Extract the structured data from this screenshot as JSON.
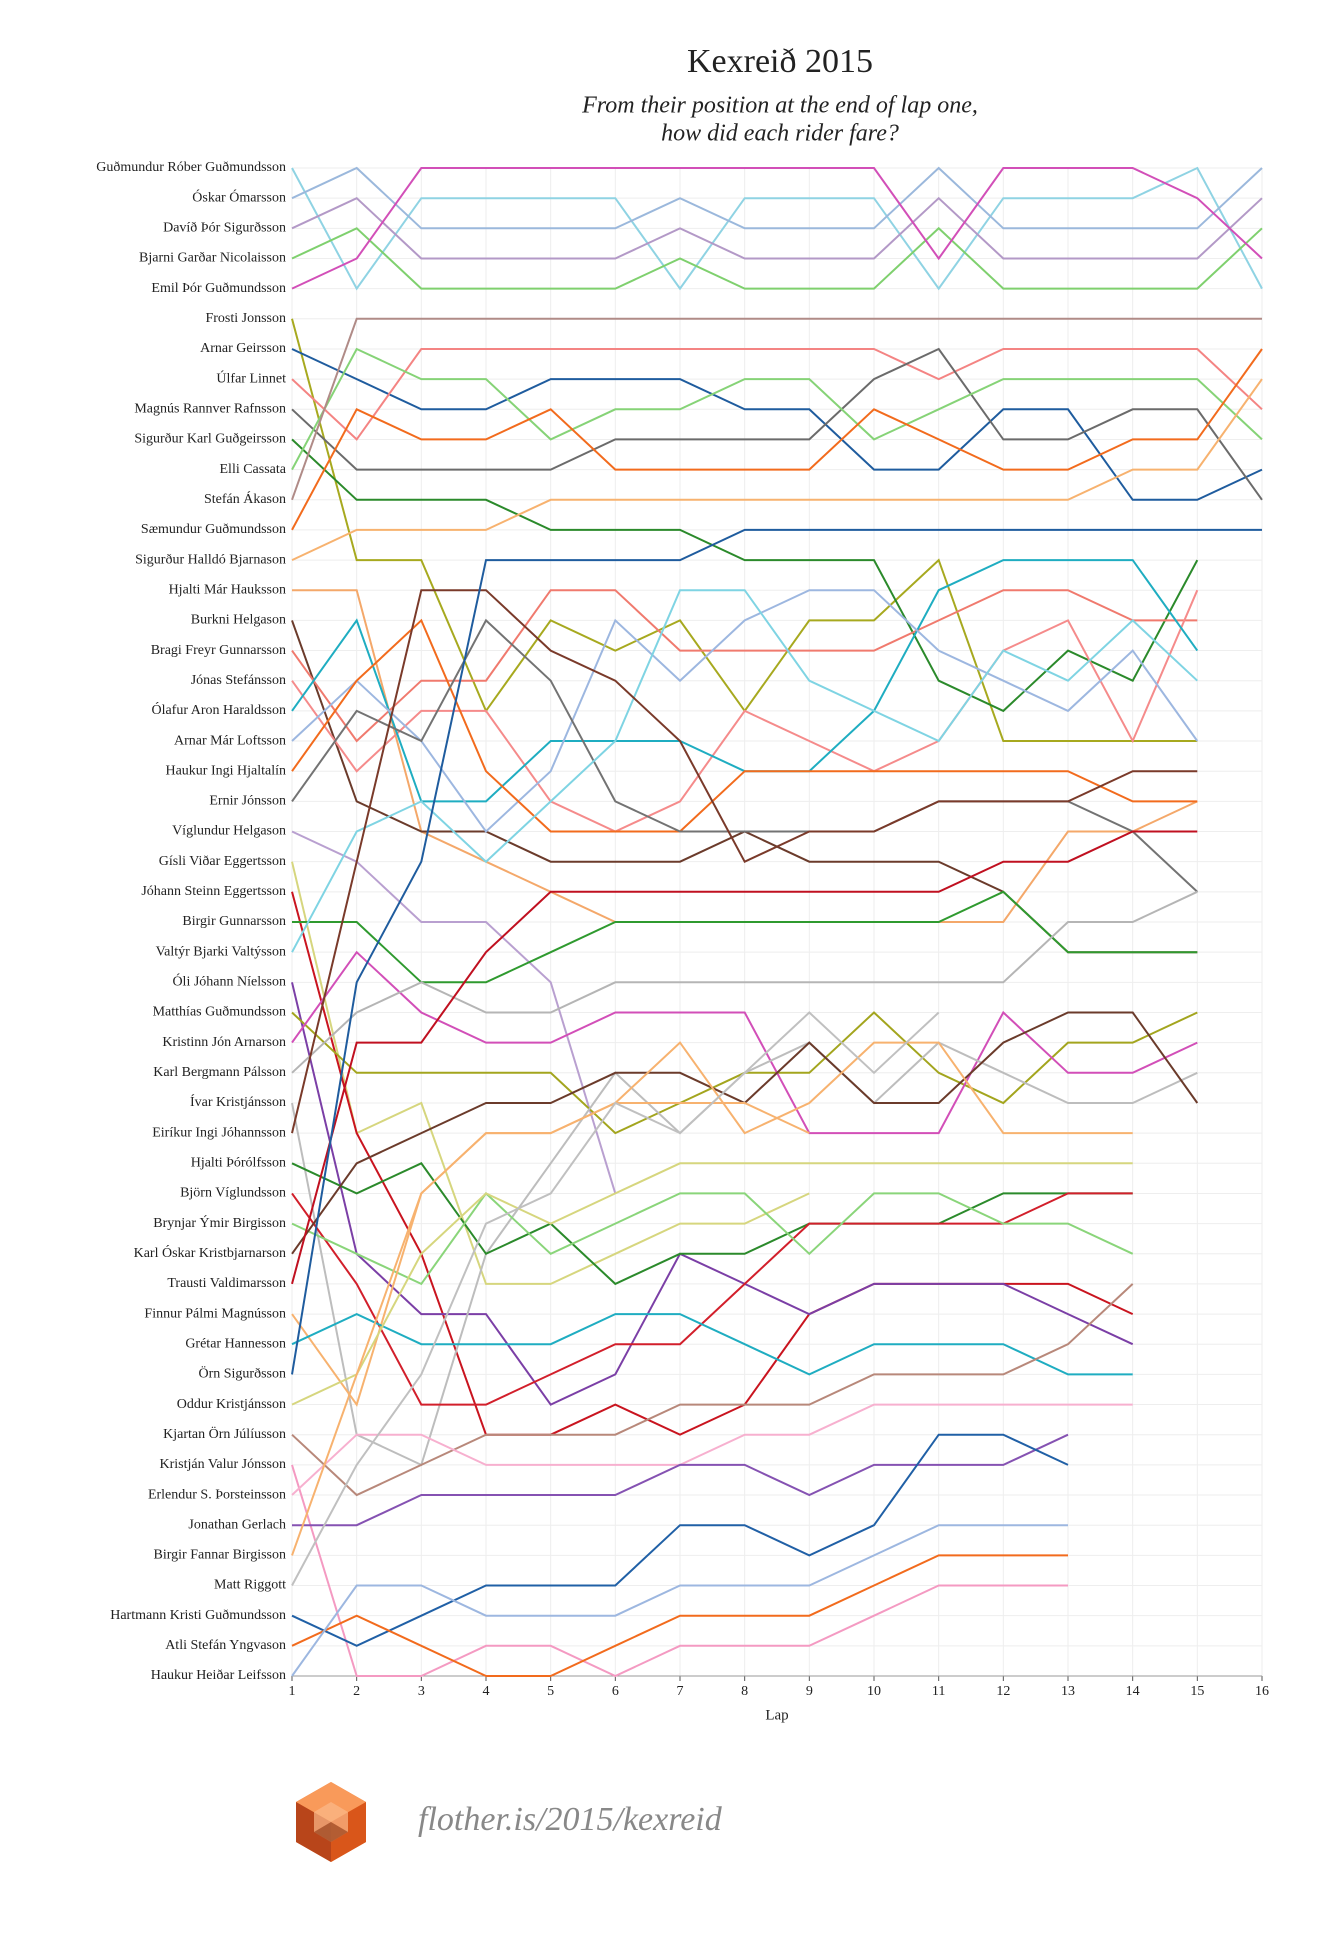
{
  "chart_data": {
    "type": "line",
    "title": "Kexreið 2015",
    "subtitle": [
      "From their position at the end of lap one,",
      "how did each rider fare?"
    ],
    "x_label": "Lap",
    "x": [
      1,
      2,
      3,
      4,
      5,
      6,
      7,
      8,
      9,
      10,
      11,
      12,
      13,
      14,
      15,
      16
    ],
    "xlim": [
      1,
      16
    ],
    "xticks": [
      1,
      2,
      3,
      4,
      5,
      6,
      7,
      8,
      9,
      10,
      11,
      12,
      13,
      14,
      15,
      16
    ],
    "ylim": [
      51,
      1
    ],
    "grid": true,
    "series": [
      {
        "name": "Guðmundur Róber Guðmundsson",
        "color": "#8fd3e3",
        "values": [
          1,
          5,
          2,
          2,
          2,
          2,
          5,
          2,
          2,
          2,
          5,
          2,
          2,
          2,
          1,
          5
        ]
      },
      {
        "name": "Óskar Ómarsson",
        "color": "#9bb8dc",
        "values": [
          2,
          1,
          3,
          3,
          3,
          3,
          2,
          3,
          3,
          3,
          1,
          3,
          3,
          3,
          3,
          1
        ]
      },
      {
        "name": "Davíð Þór Sigurðsson",
        "color": "#b399c7",
        "values": [
          3,
          2,
          4,
          4,
          4,
          4,
          3,
          4,
          4,
          4,
          2,
          4,
          4,
          4,
          4,
          2
        ]
      },
      {
        "name": "Bjarni Garðar Nicolaisson",
        "color": "#7fd06e",
        "values": [
          4,
          3,
          5,
          5,
          5,
          5,
          4,
          5,
          5,
          5,
          3,
          5,
          5,
          5,
          5,
          3
        ]
      },
      {
        "name": "Emil Þór Guðmundsson",
        "color": "#d24fb8",
        "values": [
          5,
          4,
          1,
          1,
          1,
          1,
          1,
          1,
          1,
          1,
          4,
          1,
          1,
          1,
          2,
          4
        ]
      },
      {
        "name": "Frosti Jonsson",
        "color": "#a7a91f",
        "values": [
          6,
          14,
          14,
          19,
          16,
          17,
          16,
          19,
          16,
          16,
          14,
          20,
          20,
          20,
          20,
          null
        ]
      },
      {
        "name": "Arnar Geirsson",
        "color": "#1f5c9e",
        "values": [
          7,
          8,
          9,
          9,
          8,
          8,
          8,
          9,
          9,
          11,
          11,
          9,
          9,
          12,
          12,
          11
        ]
      },
      {
        "name": "Úlfar Linnet",
        "color": "#f48483",
        "values": [
          8,
          10,
          7,
          7,
          7,
          7,
          7,
          7,
          7,
          7,
          8,
          7,
          7,
          7,
          7,
          9
        ]
      },
      {
        "name": "Magnús Rannver Rafnsson",
        "color": "#6b6b6b",
        "values": [
          9,
          11,
          11,
          11,
          11,
          10,
          10,
          10,
          10,
          8,
          7,
          10,
          10,
          9,
          9,
          12
        ]
      },
      {
        "name": "Sigurður Karl Guðgeirsson",
        "color": "#2b8a2b",
        "values": [
          10,
          12,
          12,
          12,
          13,
          13,
          13,
          14,
          14,
          14,
          18,
          19,
          17,
          18,
          14,
          null
        ]
      },
      {
        "name": "Elli Cassata",
        "color": "#86d377",
        "values": [
          11,
          7,
          8,
          8,
          10,
          9,
          9,
          8,
          8,
          10,
          9,
          8,
          8,
          8,
          8,
          10
        ]
      },
      {
        "name": "Stefán Ákason",
        "color": "#b08b87",
        "values": [
          12,
          6,
          6,
          6,
          6,
          6,
          6,
          6,
          6,
          6,
          6,
          6,
          6,
          6,
          6,
          6
        ]
      },
      {
        "name": "Sæmundur Guðmundsson",
        "color": "#f26b1d",
        "values": [
          13,
          9,
          10,
          10,
          9,
          11,
          11,
          11,
          11,
          9,
          10,
          11,
          11,
          10,
          10,
          7
        ]
      },
      {
        "name": "Sigurður Halldó Bjarnason",
        "color": "#f7b26f",
        "values": [
          14,
          13,
          13,
          13,
          12,
          12,
          12,
          12,
          12,
          12,
          12,
          12,
          12,
          11,
          11,
          8
        ]
      },
      {
        "name": "Hjalti Már Hauksson",
        "color": "#f4a86a",
        "values": [
          15,
          15,
          23,
          24,
          25,
          26,
          26,
          26,
          26,
          26,
          26,
          26,
          23,
          23,
          22,
          null
        ]
      },
      {
        "name": "Burkni Helgason",
        "color": "#6b3b2b",
        "values": [
          16,
          22,
          23,
          23,
          24,
          24,
          24,
          23,
          24,
          24,
          24,
          25,
          27,
          27,
          27,
          null
        ]
      },
      {
        "name": "Bragi Freyr Gunnarsson",
        "color": "#f07a6e",
        "values": [
          17,
          20,
          18,
          18,
          15,
          15,
          17,
          17,
          17,
          17,
          16,
          15,
          15,
          16,
          16,
          null
        ]
      },
      {
        "name": "Jónas Stefánsson",
        "color": "#f58b8b",
        "values": [
          18,
          21,
          19,
          19,
          22,
          23,
          22,
          19,
          20,
          21,
          20,
          17,
          16,
          20,
          15,
          null
        ]
      },
      {
        "name": "Ólafur Aron Haraldsson",
        "color": "#1fadc1",
        "values": [
          19,
          16,
          22,
          22,
          20,
          20,
          20,
          21,
          21,
          19,
          15,
          14,
          14,
          14,
          17,
          null
        ]
      },
      {
        "name": "Arnar Már Loftsson",
        "color": "#9db7e0",
        "values": [
          20,
          18,
          20,
          23,
          21,
          16,
          18,
          16,
          15,
          15,
          17,
          18,
          19,
          17,
          20,
          null
        ]
      },
      {
        "name": "Haukur Ingi Hjaltalín",
        "color": "#f26b1d",
        "values": [
          21,
          18,
          16,
          21,
          23,
          23,
          23,
          21,
          21,
          21,
          21,
          21,
          21,
          22,
          22,
          null
        ]
      },
      {
        "name": "Ernir Jónsson",
        "color": "#737373",
        "values": [
          22,
          19,
          20,
          16,
          18,
          22,
          23,
          23,
          23,
          23,
          22,
          22,
          22,
          23,
          25,
          null
        ]
      },
      {
        "name": "Víglundur Helgason",
        "color": "#b9a0d0",
        "values": [
          23,
          24,
          26,
          26,
          28,
          35,
          null,
          null,
          null,
          null,
          null,
          null,
          null,
          null,
          null,
          null
        ]
      },
      {
        "name": "Gísli Viðar Eggertsson",
        "color": "#d6d67e",
        "values": [
          24,
          33,
          32,
          38,
          38,
          37,
          36,
          36,
          35,
          null,
          null,
          null,
          null,
          null,
          null,
          null
        ]
      },
      {
        "name": "Jóhann Steinn Eggertsson",
        "color": "#c9141f",
        "values": [
          25,
          33,
          37,
          43,
          43,
          42,
          43,
          42,
          39,
          38,
          38,
          38,
          38,
          39,
          null,
          null
        ]
      },
      {
        "name": "Birgir Gunnarsson",
        "color": "#2f9a2f",
        "values": [
          26,
          26,
          28,
          28,
          27,
          26,
          26,
          26,
          26,
          26,
          26,
          25,
          27,
          27,
          27,
          null
        ]
      },
      {
        "name": "Valtýr Bjarki Valtýsson",
        "color": "#7fd4e3",
        "values": [
          27,
          23,
          22,
          24,
          22,
          20,
          15,
          15,
          18,
          19,
          20,
          17,
          18,
          16,
          18,
          null
        ]
      },
      {
        "name": "Óli Jóhann Níelsson",
        "color": "#7b3fa6",
        "values": [
          28,
          37,
          39,
          39,
          42,
          41,
          37,
          38,
          39,
          38,
          38,
          38,
          39,
          40,
          null,
          null
        ]
      },
      {
        "name": "Matthías Guðmundsson",
        "color": "#a3a51e",
        "values": [
          29,
          31,
          31,
          31,
          31,
          33,
          32,
          31,
          31,
          29,
          31,
          32,
          30,
          30,
          29,
          null
        ]
      },
      {
        "name": "Kristinn Jón Arnarson",
        "color": "#d24fb8",
        "values": [
          30,
          27,
          29,
          30,
          30,
          29,
          29,
          29,
          33,
          33,
          33,
          29,
          31,
          31,
          30,
          null
        ]
      },
      {
        "name": "Karl Bergmann Pálsson",
        "color": "#b5b5b5",
        "values": [
          31,
          29,
          28,
          29,
          29,
          28,
          28,
          28,
          28,
          28,
          28,
          28,
          26,
          26,
          25,
          null
        ]
      },
      {
        "name": "Ívar Kristjánsson",
        "color": "#bdbdbd",
        "values": [
          32,
          43,
          44,
          37,
          34,
          31,
          33,
          31,
          30,
          32,
          30,
          31,
          32,
          32,
          31,
          null
        ]
      },
      {
        "name": "Eiríkur Ingi Jóhannsson",
        "color": "#7a3a2a",
        "values": [
          33,
          24,
          15,
          15,
          17,
          18,
          20,
          24,
          23,
          23,
          22,
          22,
          22,
          21,
          21,
          null
        ]
      },
      {
        "name": "Hjalti Þórólfsson",
        "color": "#2b8a2b",
        "values": [
          34,
          35,
          34,
          37,
          36,
          38,
          37,
          37,
          36,
          36,
          36,
          35,
          35,
          35,
          null,
          null
        ]
      },
      {
        "name": "Björn Víglundsson",
        "color": "#d21f2b",
        "values": [
          35,
          38,
          42,
          42,
          41,
          40,
          40,
          38,
          36,
          36,
          36,
          36,
          35,
          35,
          null,
          null
        ]
      },
      {
        "name": "Brynjar Ýmir Birgisson",
        "color": "#8ad57a",
        "values": [
          36,
          37,
          38,
          35,
          37,
          36,
          35,
          35,
          37,
          35,
          35,
          36,
          36,
          37,
          null,
          null
        ]
      },
      {
        "name": "Karl Óskar Kristbjarnarson",
        "color": "#6b3b2b",
        "values": [
          37,
          34,
          33,
          32,
          32,
          31,
          31,
          32,
          30,
          32,
          32,
          30,
          29,
          29,
          32,
          null
        ]
      },
      {
        "name": "Trausti Valdimarsson",
        "color": "#c01020",
        "values": [
          38,
          30,
          30,
          27,
          25,
          25,
          25,
          25,
          25,
          25,
          25,
          24,
          24,
          23,
          23,
          null
        ]
      },
      {
        "name": "Finnur Pálmi Magnússon",
        "color": "#f7b26f",
        "values": [
          39,
          42,
          35,
          33,
          33,
          32,
          30,
          33,
          32,
          30,
          30,
          33,
          33,
          33,
          null,
          null
        ]
      },
      {
        "name": "Grétar Hannesson",
        "color": "#1fadc1",
        "values": [
          40,
          39,
          40,
          40,
          40,
          39,
          39,
          40,
          41,
          40,
          40,
          40,
          41,
          41,
          null,
          null
        ]
      },
      {
        "name": "Örn Sigurðsson",
        "color": "#1f5c9e",
        "values": [
          41,
          28,
          24,
          14,
          14,
          14,
          14,
          13,
          13,
          13,
          13,
          13,
          13,
          13,
          13,
          13
        ]
      },
      {
        "name": "Oddur Kristjánsson",
        "color": "#d6d67e",
        "values": [
          42,
          41,
          37,
          35,
          36,
          35,
          34,
          34,
          34,
          34,
          34,
          34,
          34,
          34,
          null,
          null
        ]
      },
      {
        "name": "Kjartan Örn Júlíusson",
        "color": "#b8887a",
        "values": [
          43,
          45,
          44,
          43,
          43,
          43,
          42,
          42,
          42,
          41,
          41,
          41,
          40,
          38,
          null,
          null
        ]
      },
      {
        "name": "Kristján Valur Jónsson",
        "color": "#f49ac2",
        "values": [
          44,
          51,
          51,
          50,
          50,
          51,
          50,
          50,
          50,
          49,
          48,
          48,
          48,
          null,
          null,
          null
        ]
      },
      {
        "name": "Erlendur S. Þorsteinsson",
        "color": "#f7b0cf",
        "values": [
          45,
          43,
          43,
          44,
          44,
          44,
          44,
          43,
          43,
          42,
          42,
          42,
          42,
          42,
          null,
          null
        ]
      },
      {
        "name": "Jonathan Gerlach",
        "color": "#8552b2",
        "values": [
          46,
          46,
          45,
          45,
          45,
          45,
          44,
          44,
          45,
          44,
          44,
          44,
          43,
          null,
          null,
          null
        ]
      },
      {
        "name": "Birgir Fannar Birgisson",
        "color": "#f7b26f",
        "values": [
          47,
          41,
          35,
          33,
          33,
          32,
          32,
          32,
          33,
          null,
          null,
          null,
          null,
          null,
          null,
          null
        ]
      },
      {
        "name": "Matt Riggott",
        "color": "#c0c0c0",
        "values": [
          48,
          44,
          41,
          36,
          35,
          32,
          33,
          31,
          29,
          31,
          29,
          null,
          null,
          null,
          null,
          null
        ]
      },
      {
        "name": "Hartmann Kristi Guðmundsson",
        "color": "#2060a6",
        "values": [
          49,
          50,
          49,
          48,
          48,
          48,
          46,
          46,
          47,
          46,
          43,
          43,
          44,
          null,
          null,
          null
        ]
      },
      {
        "name": "Atli Stefán Yngvason",
        "color": "#f26b1d",
        "values": [
          50,
          49,
          50,
          51,
          51,
          50,
          49,
          49,
          49,
          48,
          47,
          47,
          47,
          null,
          null,
          null
        ]
      },
      {
        "name": "Haukur Heiðar Leifsson",
        "color": "#9db7e0",
        "values": [
          51,
          48,
          48,
          49,
          49,
          49,
          48,
          48,
          48,
          47,
          46,
          46,
          46,
          null,
          null,
          null
        ]
      }
    ]
  },
  "footer": "flother.is/2015/kexreid"
}
